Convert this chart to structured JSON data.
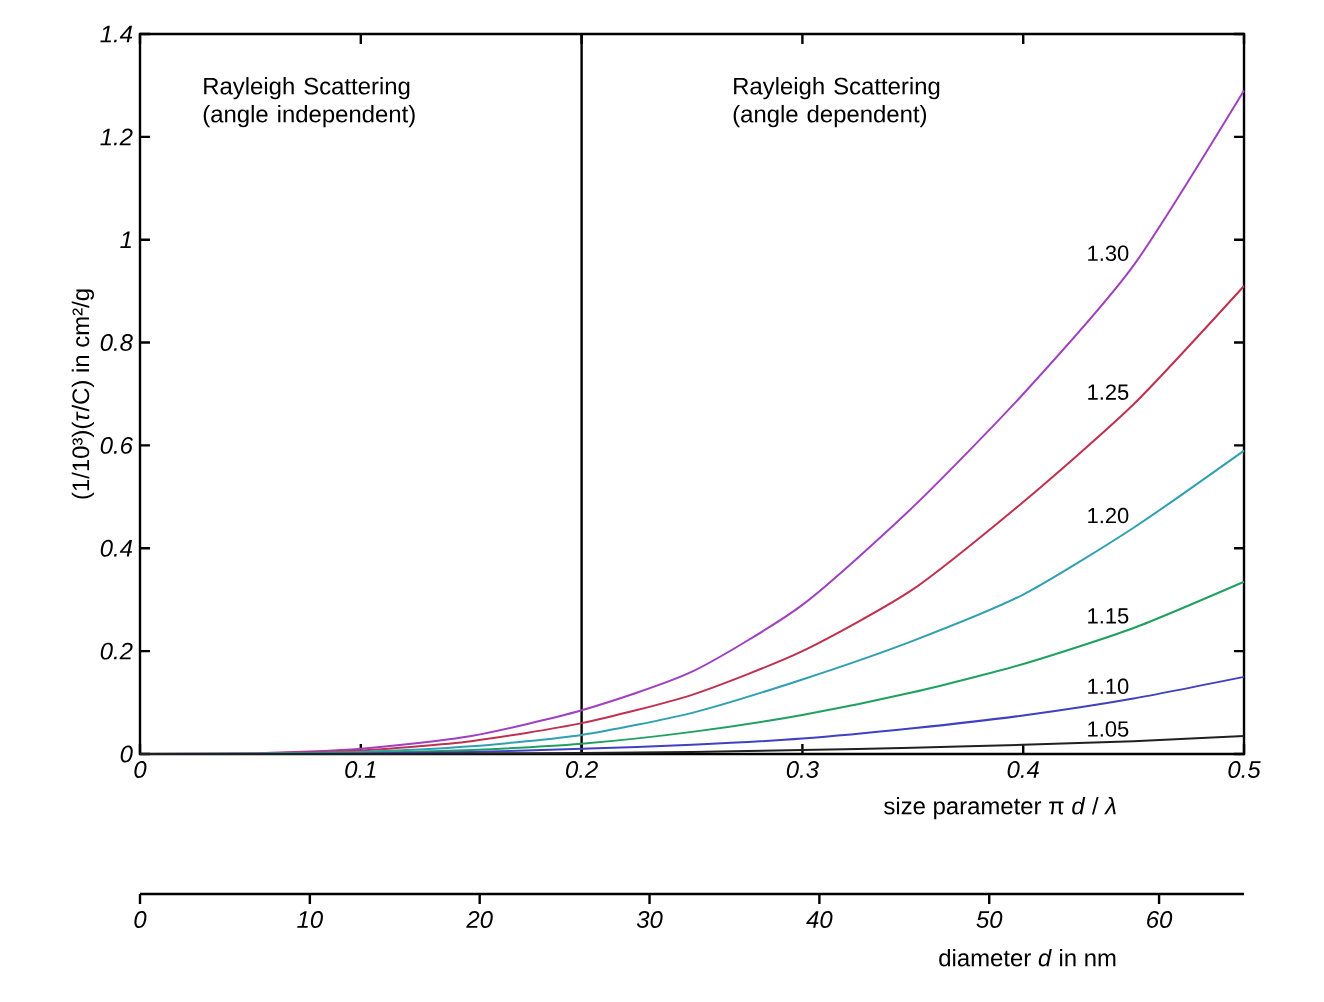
{
  "chart_data": {
    "type": "line",
    "xlabel": "size parameter π *d* / *λ*",
    "ylabel": "(1/10³)(*τ*/C) in cm²/g",
    "x2label": "diameter *d* in nm",
    "x": [
      0,
      0.05,
      0.1,
      0.15,
      0.2,
      0.25,
      0.3,
      0.35,
      0.4,
      0.45,
      0.5
    ],
    "series": [
      {
        "name": "1.30",
        "color": "#a040c0",
        "values": [
          0,
          0.001,
          0.01,
          0.035,
          0.085,
          0.16,
          0.29,
          0.48,
          0.7,
          0.95,
          1.29
        ]
      },
      {
        "name": "1.25",
        "color": "#c03050",
        "values": [
          0,
          0.001,
          0.007,
          0.025,
          0.06,
          0.115,
          0.2,
          0.32,
          0.49,
          0.68,
          0.91
        ]
      },
      {
        "name": "1.20",
        "color": "#30a0b0",
        "values": [
          0,
          0.001,
          0.004,
          0.015,
          0.037,
          0.08,
          0.145,
          0.22,
          0.31,
          0.44,
          0.59
        ]
      },
      {
        "name": "1.15",
        "color": "#20a060",
        "values": [
          0,
          0,
          0.002,
          0.008,
          0.02,
          0.043,
          0.076,
          0.12,
          0.175,
          0.245,
          0.335
        ]
      },
      {
        "name": "1.10",
        "color": "#4040c0",
        "values": [
          0,
          0,
          0.001,
          0.004,
          0.01,
          0.018,
          0.03,
          0.05,
          0.075,
          0.108,
          0.15
        ]
      },
      {
        "name": "1.05",
        "color": "#202020",
        "values": [
          0,
          0,
          0,
          0.001,
          0.002,
          0.004,
          0.008,
          0.012,
          0.018,
          0.025,
          0.035
        ]
      }
    ],
    "xlim": [
      0,
      0.5
    ],
    "ylim": [
      0,
      1.4
    ],
    "xticks": [
      0,
      0.1,
      0.2,
      0.3,
      0.4,
      0.5
    ],
    "yticks": [
      0,
      0.2,
      0.4,
      0.6,
      0.8,
      {
        "value": 1,
        "label": "1"
      },
      1.2,
      1.4
    ],
    "x2lim": [
      0,
      65
    ],
    "x2ticks": [
      0,
      10,
      20,
      30,
      40,
      50,
      60
    ],
    "ref_lines": [
      {
        "axis": "x",
        "value": 0.2,
        "color": "#000000"
      }
    ],
    "annotations": [
      "Rayleigh Scattering (angle independent)",
      "Rayleigh Scattering (angle dependent)"
    ],
    "grid": false,
    "legend": false
  }
}
